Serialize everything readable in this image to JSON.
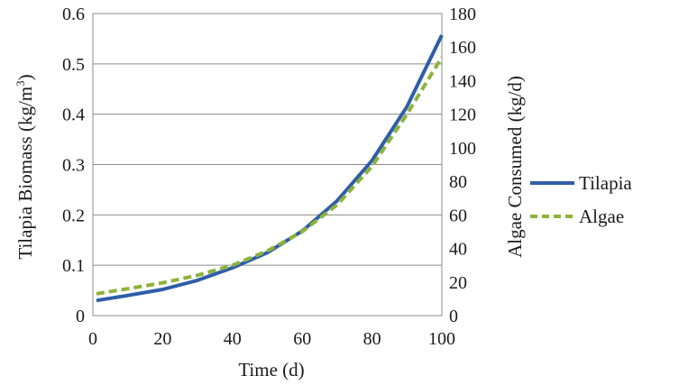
{
  "chart_data": {
    "type": "line",
    "title": "",
    "xlabel": "Time (d)",
    "ylabel_left": "Tilapia Biomass (kg/m3)",
    "ylabel_left_base": "Tilapia Biomass (kg/m",
    "ylabel_left_sup": "3",
    "ylabel_left_close": ")",
    "ylabel_right": "Algae Consumed (kg/d)",
    "xlim": [
      0,
      100
    ],
    "ylim_left": [
      0,
      0.6
    ],
    "ylim_right": [
      0,
      180
    ],
    "x_ticks": [
      "0",
      "20",
      "40",
      "60",
      "80",
      "100"
    ],
    "y_left_ticks": [
      "0",
      "0.1",
      "0.2",
      "0.3",
      "0.4",
      "0.5",
      "0.6"
    ],
    "y_right_ticks": [
      "0",
      "20",
      "40",
      "60",
      "80",
      "100",
      "120",
      "140",
      "160",
      "180"
    ],
    "grid": true,
    "legend_position": "right",
    "series": [
      {
        "name": "Tilapia",
        "axis": "left",
        "color": "#2f5ea8",
        "style": "solid",
        "x": [
          1,
          10,
          20,
          30,
          40,
          50,
          60,
          70,
          80,
          90,
          100
        ],
        "values": [
          0.03,
          0.04,
          0.052,
          0.07,
          0.095,
          0.125,
          0.168,
          0.228,
          0.308,
          0.415,
          0.557
        ]
      },
      {
        "name": "Algae",
        "axis": "right",
        "color": "#8db33a",
        "style": "dashed",
        "x": [
          1,
          10,
          20,
          30,
          40,
          50,
          60,
          70,
          80,
          90,
          100
        ],
        "values": [
          13,
          16,
          19.5,
          24,
          30,
          38.5,
          50,
          66,
          89,
          120,
          154
        ]
      }
    ]
  }
}
